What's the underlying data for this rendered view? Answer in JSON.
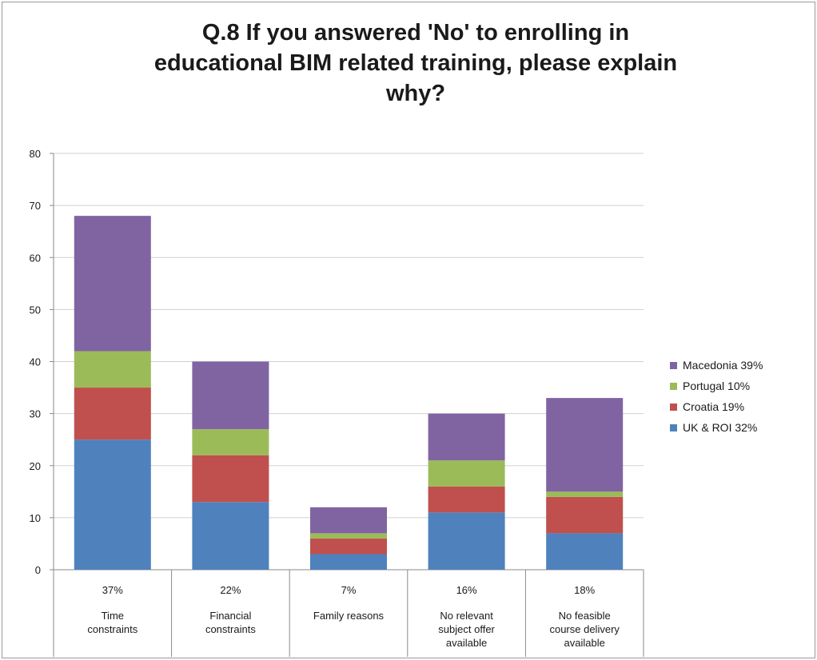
{
  "chart_data": {
    "type": "bar",
    "stacked": true,
    "title_lines": [
      "Q.8 If you answered 'No' to enrolling in",
      "educational BIM related training, please explain",
      "why?"
    ],
    "ylim": [
      0,
      80
    ],
    "y_ticks": [
      0,
      10,
      20,
      30,
      40,
      50,
      60,
      70,
      80
    ],
    "grid": true,
    "legend_position": "right",
    "categories": [
      {
        "percent": "37%",
        "label_lines": [
          "Time",
          "constraints"
        ]
      },
      {
        "percent": "22%",
        "label_lines": [
          "Financial",
          "constraints"
        ]
      },
      {
        "percent": "7%",
        "label_lines": [
          "Family reasons"
        ]
      },
      {
        "percent": "16%",
        "label_lines": [
          "No relevant",
          "subject offer",
          "available"
        ]
      },
      {
        "percent": "18%",
        "label_lines": [
          "No feasible",
          "course delivery",
          "available"
        ]
      }
    ],
    "series": [
      {
        "name": "UK & ROI 32%",
        "color": "#4f81bd",
        "values": [
          25,
          13,
          3,
          11,
          7
        ]
      },
      {
        "name": "Croatia 19%",
        "color": "#c0504d",
        "values": [
          10,
          9,
          3,
          5,
          7
        ]
      },
      {
        "name": "Portugal 10%",
        "color": "#9bbb59",
        "values": [
          7,
          5,
          1,
          5,
          1
        ]
      },
      {
        "name": "Macedonia 39%",
        "color": "#8064a2",
        "values": [
          26,
          13,
          5,
          9,
          18
        ]
      }
    ],
    "legend_order": [
      "Macedonia 39%",
      "Portugal 10%",
      "Croatia 19%",
      "UK & ROI 32%"
    ]
  }
}
